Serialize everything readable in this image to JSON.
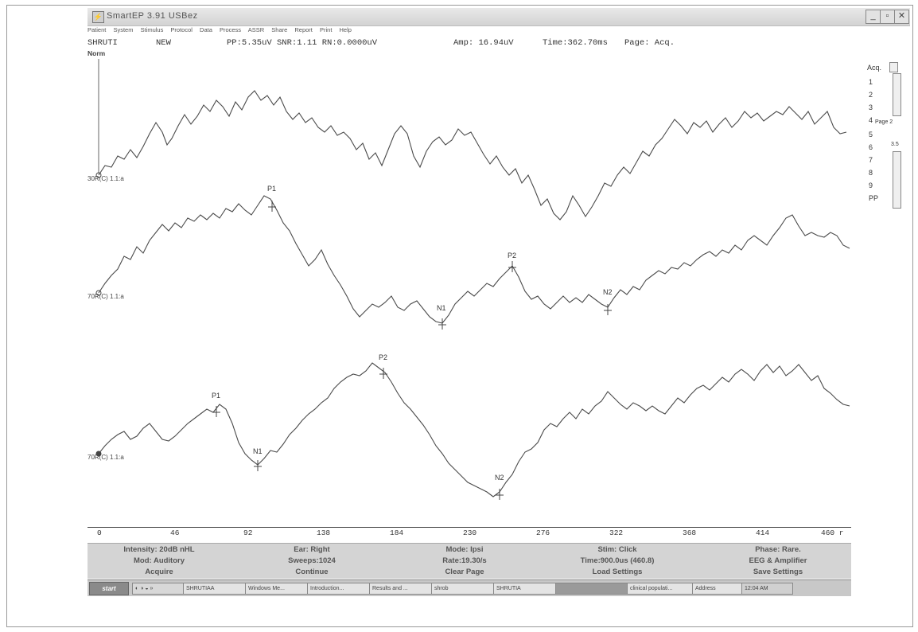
{
  "window": {
    "title": "SmartEP 3.91 USBez",
    "controls": [
      "minimize",
      "maximize",
      "close"
    ]
  },
  "menu": [
    "Patient",
    "System",
    "Stimulus",
    "Protocol",
    "Data",
    "Process",
    "ASSR",
    "Share",
    "Report",
    "Print",
    "Help"
  ],
  "status": {
    "patient": "SHRUTI",
    "state": "NEW",
    "measures": "PP:5.35uV SNR:1.11 RN:0.0000uV",
    "amp": "Amp: 16.94uV",
    "time": "Time:362.70ms",
    "page": "Page: Acq."
  },
  "norm_label": "Norm",
  "side_panel": {
    "header": "Acq.",
    "items": [
      "1",
      "2",
      "3",
      "4",
      "5",
      "6",
      "7",
      "8",
      "9",
      "PP"
    ],
    "page_label": "Page 2",
    "counter": "3.5"
  },
  "waveforms": [
    {
      "label": "30R(C) 1.1:a",
      "peaks": []
    },
    {
      "label": "70R(C) 1.1:a",
      "peaks": [
        "P1",
        "N1",
        "P2",
        "N2"
      ]
    },
    {
      "label": "70R(C) 1.1:a",
      "peaks": [
        "P1",
        "N1",
        "P2",
        "N2"
      ]
    }
  ],
  "axis_ticks": [
    "0",
    "46",
    "92",
    "138",
    "184",
    "230",
    "276",
    "322",
    "368",
    "414",
    "460 r"
  ],
  "info": {
    "row1": [
      "Intensity: 20dB nHL",
      "Ear: Right",
      "Mode: Ipsi",
      "Stim: Click",
      "Phase: Rare."
    ],
    "row2": [
      "Mod: Auditory",
      "Sweeps:1024",
      "Rate:19.30/s",
      "Time:900.0us (460.8)",
      "EEG & Amplifier"
    ],
    "row3": [
      "Acquire",
      "Continue",
      "Clear Page",
      "Load Settings",
      "Save Settings"
    ]
  },
  "taskbar": {
    "start": "start",
    "tasks": [
      "SHRUTIAA",
      "Windows Me...",
      "Introduction...",
      "Results and ...",
      "shrob",
      "SHRUTIA",
      "",
      "clinical populati..."
    ],
    "address": "Address",
    "clock": "12:04 AM"
  }
}
